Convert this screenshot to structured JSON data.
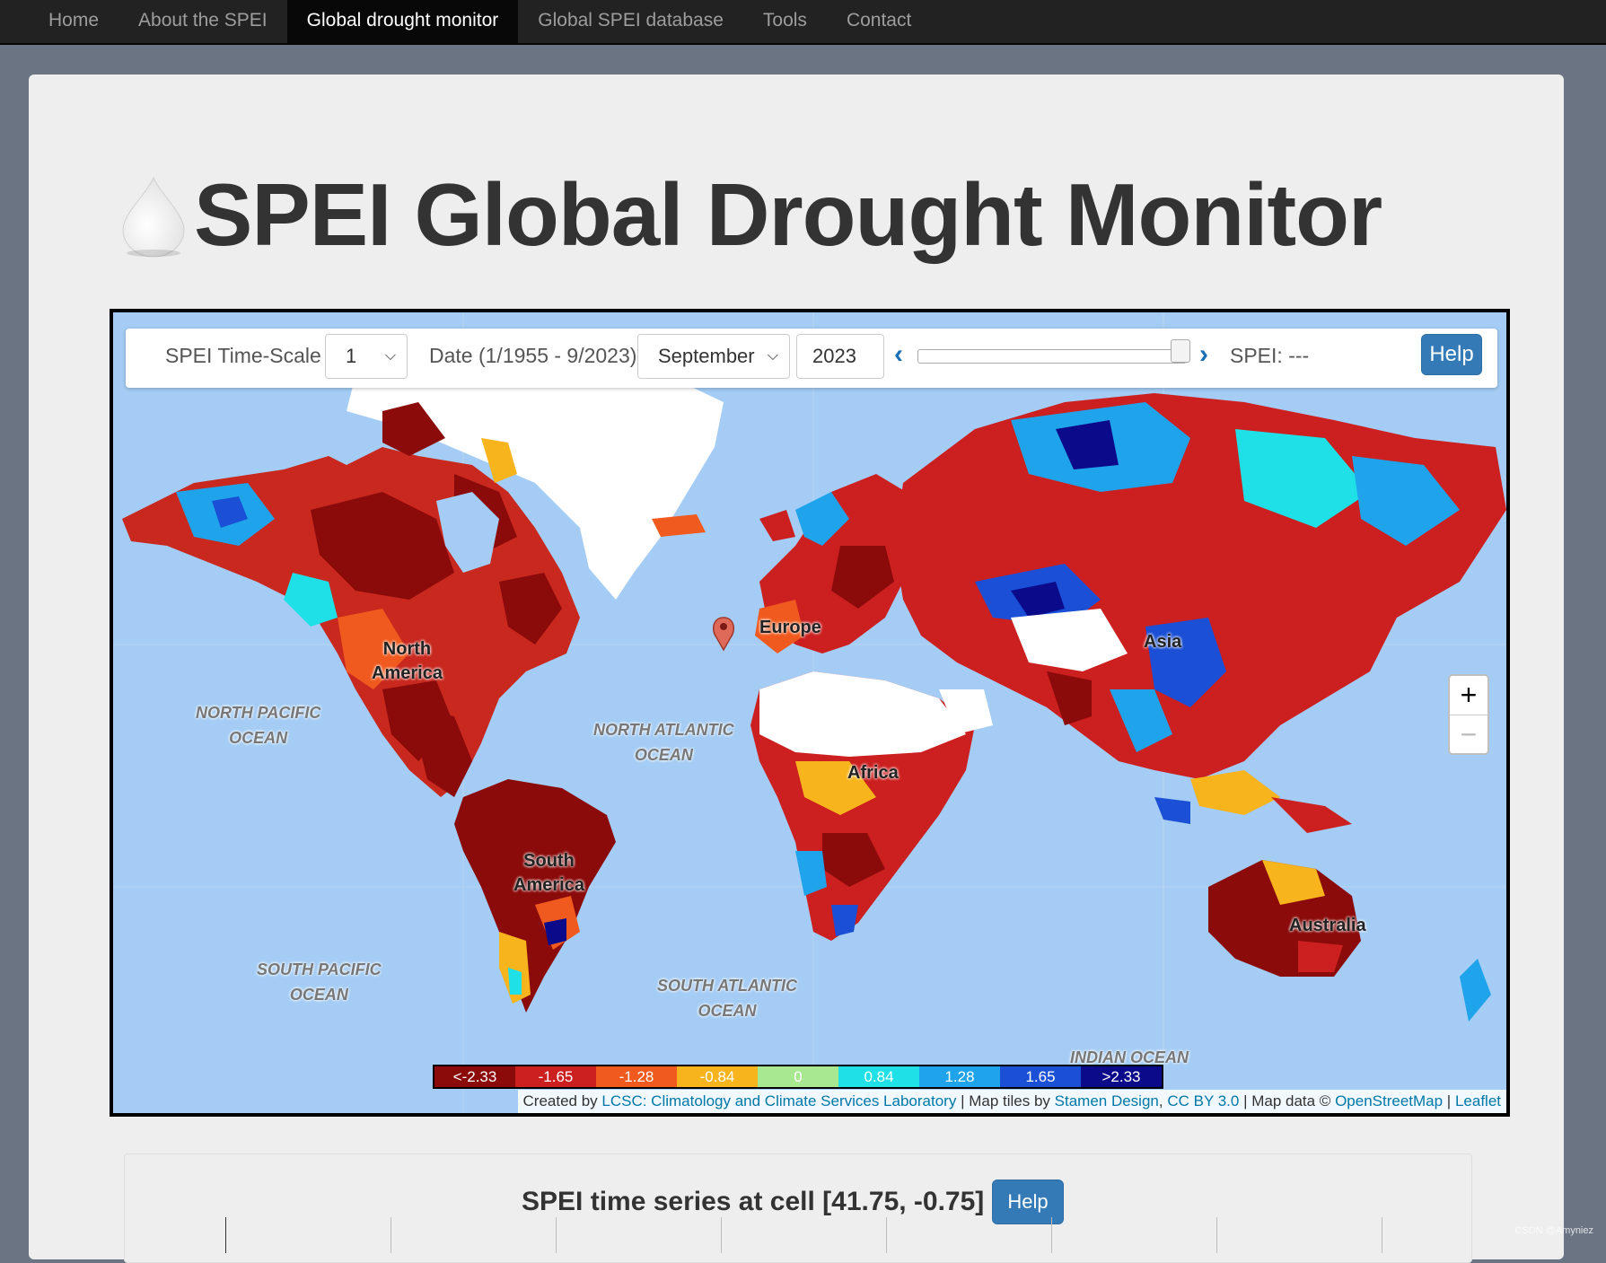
{
  "nav": {
    "items": [
      "Home",
      "About the SPEI",
      "Global drought monitor",
      "Global SPEI database",
      "Tools",
      "Contact"
    ],
    "active": "Global drought monitor"
  },
  "page": {
    "title": "SPEI Global Drought Monitor"
  },
  "controls": {
    "timescale_label": "SPEI Time-Scale",
    "timescale_value": "1",
    "date_label": "Date (1/1955 - 9/2023)",
    "month_value": "September",
    "year_value": "2023",
    "spei_readout": "SPEI: ---",
    "help_label": "Help",
    "prev_icon": "chevron-left-icon",
    "next_icon": "chevron-right-icon",
    "slider_position": 1.0
  },
  "map": {
    "labels": {
      "north_america": [
        "North",
        "America"
      ],
      "south_america": [
        "South",
        "America"
      ],
      "europe": "Europe",
      "africa": "Africa",
      "asia": "Asia",
      "australia": "Australia",
      "north_pacific": [
        "NORTH PACIFIC",
        "OCEAN"
      ],
      "north_atlantic": [
        "NORTH ATLANTIC",
        "OCEAN"
      ],
      "south_pacific": [
        "SOUTH PACIFIC",
        "OCEAN"
      ],
      "south_atlantic": [
        "SOUTH ATLANTIC",
        "OCEAN"
      ],
      "indian": "INDIAN OCEAN"
    },
    "zoom_in": "+",
    "zoom_out": "−",
    "marker_icon": "map-pin-icon",
    "legend": [
      {
        "label": "<-2.33",
        "color": "#8b0a0a"
      },
      {
        "label": "-1.65",
        "color": "#cc1f1f"
      },
      {
        "label": "-1.28",
        "color": "#f05a1e"
      },
      {
        "label": "-0.84",
        "color": "#f8b41c"
      },
      {
        "label": "0",
        "color": "#a8e890"
      },
      {
        "label": "0.84",
        "color": "#1fe0e6"
      },
      {
        "label": "1.28",
        "color": "#1fa4ec"
      },
      {
        "label": "1.65",
        "color": "#1a4fd6"
      },
      {
        "label": ">2.33",
        "color": "#0a0a8a"
      }
    ],
    "attribution": {
      "prefix": "Created by ",
      "lcsc": "LCSC: Climatology and Climate Services Laboratory",
      "sep1": " | Map tiles by ",
      "stamen": "Stamen Design",
      "comma": ", ",
      "cc": "CC BY 3.0",
      "sep2": " | Map data © ",
      "osm": "OpenStreetMap",
      "sep3": " | ",
      "leaflet": "Leaflet"
    }
  },
  "timeseries": {
    "title": "SPEI time series at cell [41.75, -0.75]",
    "help_label": "Help"
  },
  "watermark": "CSDN @Amyniez"
}
